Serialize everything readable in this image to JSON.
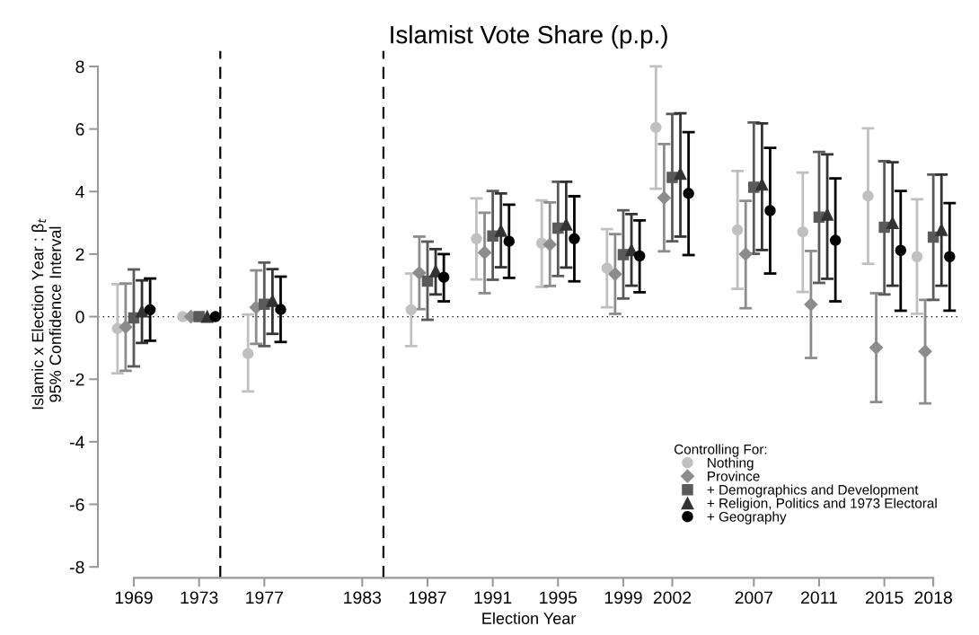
{
  "chart_data": {
    "type": "scatter",
    "title": "Islamist Vote Share (p.p.)",
    "xlabel": "Election Year",
    "ylabel": "Islamic x Election Year : β$_{t}$\n95% Confidence Interval",
    "legend_title": "Controlling For:",
    "legend": "bottom right",
    "grid": false,
    "xlim": [
      1966.8,
      2019.6
    ],
    "xticks": [
      1969,
      1973,
      1977,
      1983,
      1987,
      1991,
      1995,
      1999,
      2002,
      2007,
      2011,
      2015,
      2018
    ],
    "ylim": [
      -8.35,
      8.5
    ],
    "yticks": [
      -8,
      -6,
      -4,
      -2,
      0,
      2,
      4,
      6,
      8
    ],
    "ref_lines": [
      {
        "axis": "y",
        "value": 0,
        "line_style": "dotted",
        "color": "#000000"
      },
      {
        "axis": "x",
        "value": 1974.3,
        "line_style": "dashed",
        "color": "#000000"
      },
      {
        "axis": "x",
        "value": 1984.3,
        "line_style": "dashed",
        "color": "#000000"
      }
    ],
    "series": [
      {
        "name": "Nothing",
        "color": "#c0c0c0",
        "marker": "circle",
        "x": [
          1968,
          1972,
          1976,
          1986,
          1990,
          1994,
          1998,
          2001,
          2006,
          2010,
          2014,
          2017
        ],
        "values": [
          -0.38,
          0,
          -1.18,
          0.22,
          2.49,
          2.35,
          1.55,
          6.05,
          2.77,
          2.71,
          3.86,
          1.92
        ],
        "errors": [
          [
            -1.81,
            1.04
          ],
          null,
          [
            -2.39,
            0.07
          ],
          [
            -0.94,
            1.38
          ],
          [
            1.19,
            3.78
          ],
          [
            0.95,
            3.72
          ],
          [
            0.3,
            2.8
          ],
          [
            4.09,
            8.0
          ],
          [
            0.89,
            4.66
          ],
          [
            0.79,
            4.61
          ],
          [
            1.69,
            6.02
          ],
          [
            0.09,
            3.75
          ]
        ]
      },
      {
        "name": "Province",
        "color": "#8c8c8c",
        "marker": "diamond",
        "x": [
          1968.5,
          1972.5,
          1976.5,
          1986.5,
          1990.5,
          1994.5,
          1998.5,
          2001.5,
          2006.5,
          2010.5,
          2014.5,
          2017.5
        ],
        "values": [
          -0.33,
          0,
          0.3,
          1.4,
          2.05,
          2.31,
          1.36,
          3.8,
          2.0,
          0.39,
          -0.99,
          -1.11
        ],
        "errors": [
          [
            -1.73,
            1.06
          ],
          null,
          [
            -0.87,
            1.48
          ],
          [
            0.24,
            2.56
          ],
          [
            0.75,
            3.32
          ],
          [
            0.98,
            3.65
          ],
          [
            0.09,
            2.64
          ],
          [
            2.09,
            5.52
          ],
          [
            0.27,
            3.7
          ],
          [
            -1.32,
            2.1
          ],
          [
            -2.73,
            0.75
          ],
          [
            -2.77,
            0.54
          ]
        ]
      },
      {
        "name": "+ Demographics and Development",
        "color": "#5a5a5a",
        "marker": "square",
        "x": [
          1969,
          1973,
          1977,
          1987,
          1991,
          1995,
          1999,
          2002,
          2007,
          2011,
          2015,
          2018
        ],
        "values": [
          -0.04,
          0,
          0.4,
          1.14,
          2.58,
          2.83,
          1.98,
          4.45,
          4.14,
          3.18,
          2.86,
          2.54
        ],
        "errors": [
          [
            -1.59,
            1.51
          ],
          null,
          [
            -0.94,
            1.73
          ],
          [
            -0.1,
            2.4
          ],
          [
            1.18,
            4.02
          ],
          [
            1.3,
            4.31
          ],
          [
            0.58,
            3.4
          ],
          [
            2.41,
            6.48
          ],
          [
            2.01,
            6.21
          ],
          [
            1.08,
            5.27
          ],
          [
            0.71,
            4.97
          ],
          [
            0.54,
            4.54
          ]
        ]
      },
      {
        "name": "+ Religion, Politics and 1973 Electoral",
        "color": "#333333",
        "marker": "triangle",
        "x": [
          1969.5,
          1973.5,
          1977.5,
          1987.5,
          1991.5,
          1995.5,
          1999.5,
          2002.5,
          2007.5,
          2011.5,
          2015.5,
          2018.5
        ],
        "values": [
          0.17,
          0,
          0.51,
          1.46,
          2.75,
          2.95,
          2.13,
          4.57,
          4.23,
          3.27,
          3.0,
          2.78
        ],
        "errors": [
          [
            -0.84,
            1.16
          ],
          null,
          [
            -0.55,
            1.52
          ],
          [
            0.71,
            2.16
          ],
          [
            1.58,
            3.94
          ],
          [
            1.57,
            4.31
          ],
          [
            0.99,
            3.28
          ],
          [
            2.56,
            6.5
          ],
          [
            2.13,
            6.18
          ],
          [
            1.21,
            5.19
          ],
          [
            0.99,
            4.94
          ],
          [
            0.99,
            4.54
          ]
        ]
      },
      {
        "name": "+ Geography",
        "color": "#000000",
        "marker": "circle",
        "x": [
          1970,
          1974,
          1978,
          1988,
          1992,
          1996,
          2000,
          2003,
          2008,
          2012,
          2016,
          2019
        ],
        "values": [
          0.22,
          0,
          0.23,
          1.26,
          2.41,
          2.49,
          1.94,
          3.94,
          3.39,
          2.44,
          2.12,
          1.92
        ],
        "errors": [
          [
            -0.77,
            1.22
          ],
          null,
          [
            -0.81,
            1.28
          ],
          [
            0.49,
            2.0
          ],
          [
            1.24,
            3.58
          ],
          [
            1.13,
            3.85
          ],
          [
            0.78,
            3.08
          ],
          [
            1.97,
            5.9
          ],
          [
            1.38,
            5.4
          ],
          [
            0.49,
            4.42
          ],
          [
            0.19,
            4.02
          ],
          [
            0.19,
            3.63
          ]
        ]
      }
    ]
  }
}
